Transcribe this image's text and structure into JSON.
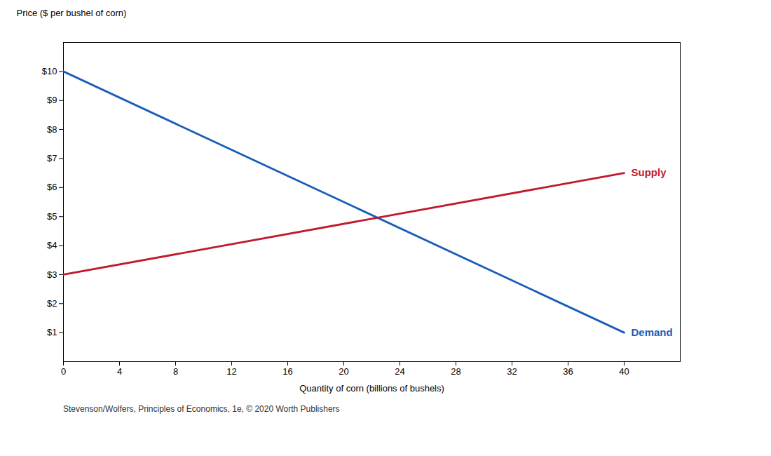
{
  "chart_data": {
    "type": "line",
    "xlabel": "Quantity of corn (billions of bushels)",
    "ylabel": "Price ($ per bushel of corn)",
    "footnote": "Stevenson/Wolfers, Principles of Economics, 1e, © 2020 Worth Publishers",
    "x": [
      0,
      40
    ],
    "series": [
      {
        "name": "Demand",
        "color": "#1a5eb8",
        "values": [
          10,
          1
        ]
      },
      {
        "name": "Supply",
        "color": "#c0192c",
        "values": [
          3,
          6.5
        ]
      }
    ],
    "xlim": [
      0,
      44
    ],
    "ylim": [
      0,
      11.0
    ],
    "xticks": [
      0,
      4,
      8,
      12,
      16,
      20,
      24,
      28,
      32,
      36,
      40
    ],
    "yticks": [
      {
        "value": 1,
        "label": "$1"
      },
      {
        "value": 2,
        "label": "$2"
      },
      {
        "value": 3,
        "label": "$3"
      },
      {
        "value": 4,
        "label": "$4"
      },
      {
        "value": 5,
        "label": "$5"
      },
      {
        "value": 6,
        "label": "$6"
      },
      {
        "value": 7,
        "label": "$7"
      },
      {
        "value": 8,
        "label": "$8"
      },
      {
        "value": 9,
        "label": "$9"
      },
      {
        "value": 10,
        "label": "$10"
      }
    ],
    "grid": false
  }
}
